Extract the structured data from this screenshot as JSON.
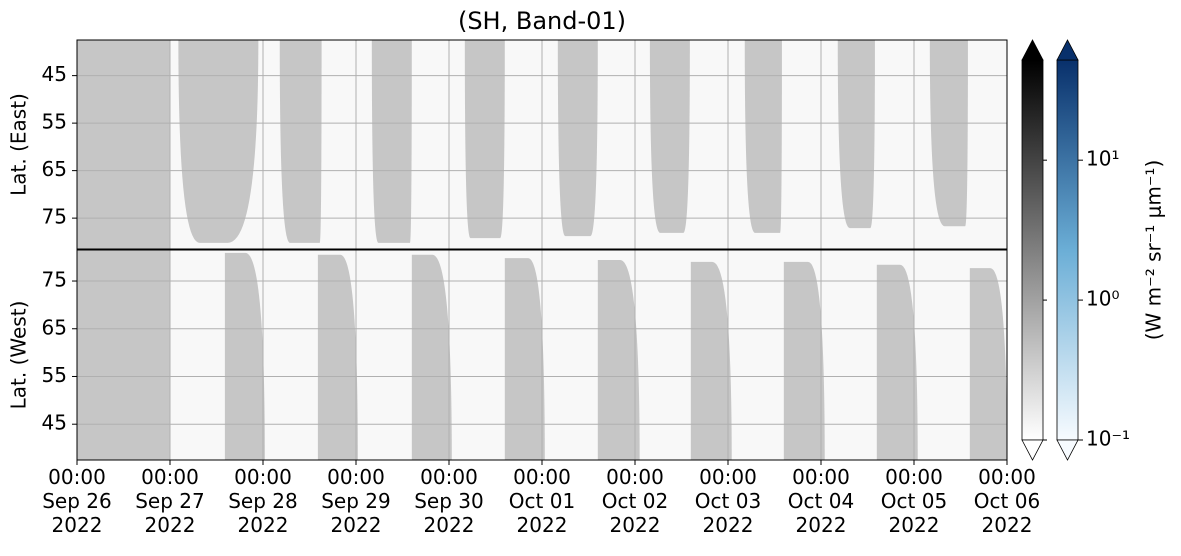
{
  "chart_data": {
    "type": "heatmap",
    "title": "(SH, Band-01)",
    "xlim": [
      0,
      10
    ],
    "xticks": [
      {
        "value": 0,
        "label": "00:00\nSep 26\n2022"
      },
      {
        "value": 1,
        "label": "00:00\nSep 27\n2022"
      },
      {
        "value": 2,
        "label": "00:00\nSep 28\n2022"
      },
      {
        "value": 3,
        "label": "00:00\nSep 29\n2022"
      },
      {
        "value": 4,
        "label": "00:00\nSep 30\n2022"
      },
      {
        "value": 5,
        "label": "00:00\nOct 01\n2022"
      },
      {
        "value": 6,
        "label": "00:00\nOct 02\n2022"
      },
      {
        "value": 7,
        "label": "00:00\nOct 03\n2022"
      },
      {
        "value": 8,
        "label": "00:00\nOct 04\n2022"
      },
      {
        "value": 9,
        "label": "00:00\nOct 05\n2022"
      },
      {
        "value": 10,
        "label": "00:00\nOct 06\n2022"
      }
    ],
    "grid": true,
    "background_value": 0.12,
    "block_value": 0.4,
    "panels": [
      {
        "ylabel": "Lat. (East)",
        "ylim": [
          37.5,
          81.5
        ],
        "inverted": true,
        "yticks": [
          45,
          55,
          65,
          75
        ],
        "blocks": [
          {
            "t_low": [
              0,
              1
            ],
            "t_high": [
              0,
              1
            ],
            "lat_end": 81.5
          },
          {
            "t_low": [
              1.09,
              1.95
            ],
            "t_high": [
              1.32,
              1.62
            ],
            "lat_end": 80.2
          },
          {
            "t_low": [
              2.18,
              2.63
            ],
            "t_high": [
              2.29,
              2.61
            ],
            "lat_end": 80.2
          },
          {
            "t_low": [
              3.17,
              3.6
            ],
            "t_high": [
              3.24,
              3.58
            ],
            "lat_end": 80.2
          },
          {
            "t_low": [
              4.17,
              4.6
            ],
            "t_high": [
              4.23,
              4.55
            ],
            "lat_end": 79.2
          },
          {
            "t_low": [
              5.17,
              5.6
            ],
            "t_high": [
              5.25,
              5.52
            ],
            "lat_end": 78.8
          },
          {
            "t_low": [
              6.16,
              6.59
            ],
            "t_high": [
              6.27,
              6.52
            ],
            "lat_end": 78.1
          },
          {
            "t_low": [
              7.18,
              7.58
            ],
            "t_high": [
              7.29,
              7.56
            ],
            "lat_end": 78.1
          },
          {
            "t_low": [
              8.18,
              8.58
            ],
            "t_high": [
              8.31,
              8.53
            ],
            "lat_end": 77.1
          },
          {
            "t_low": [
              9.17,
              9.58
            ],
            "t_high": [
              9.33,
              9.55
            ],
            "lat_end": 76.7
          }
        ]
      },
      {
        "ylabel": "Lat. (West)",
        "ylim": [
          37.5,
          81.5
        ],
        "inverted": false,
        "yticks": [
          45,
          55,
          65,
          75
        ],
        "blocks": [
          {
            "t_low": [
              0,
              1
            ],
            "t_high": [
              0,
              1
            ],
            "lat_end": 81.5
          },
          {
            "t_low": [
              1.59,
              2.02
            ],
            "t_high": [
              1.59,
              1.81
            ],
            "lat_end": 80.9
          },
          {
            "t_low": [
              2.59,
              3.02
            ],
            "t_high": [
              2.59,
              2.83
            ],
            "lat_end": 80.5
          },
          {
            "t_low": [
              3.6,
              4.03
            ],
            "t_high": [
              3.6,
              3.82
            ],
            "lat_end": 80.5
          },
          {
            "t_low": [
              4.6,
              5.03
            ],
            "t_high": [
              4.6,
              4.85
            ],
            "lat_end": 79.8
          },
          {
            "t_low": [
              5.6,
              6.05
            ],
            "t_high": [
              5.6,
              5.84
            ],
            "lat_end": 79.4
          },
          {
            "t_low": [
              6.6,
              7.04
            ],
            "t_high": [
              6.6,
              6.83
            ],
            "lat_end": 79.0
          },
          {
            "t_low": [
              7.6,
              8.04
            ],
            "t_high": [
              7.6,
              7.86
            ],
            "lat_end": 79.0
          },
          {
            "t_low": [
              8.6,
              9.04
            ],
            "t_high": [
              8.6,
              8.85
            ],
            "lat_end": 78.4
          },
          {
            "t_low": [
              9.6,
              10
            ],
            "t_high": [
              9.6,
              9.82
            ],
            "lat_end": 77.7
          }
        ]
      }
    ],
    "colorbar": {
      "label": "(W m⁻² sr⁻¹ μm⁻¹)",
      "log": true,
      "clim": [
        0.1,
        52
      ],
      "colormaps": [
        [
          "#ffffff",
          "#000000"
        ],
        [
          "#f7fbff",
          "#08306b"
        ]
      ],
      "yticks": [
        {
          "value": 0.1,
          "label": "10⁻¹"
        },
        {
          "value": 1,
          "label": "10⁰"
        },
        {
          "value": 10,
          "label": "10¹"
        }
      ]
    }
  }
}
